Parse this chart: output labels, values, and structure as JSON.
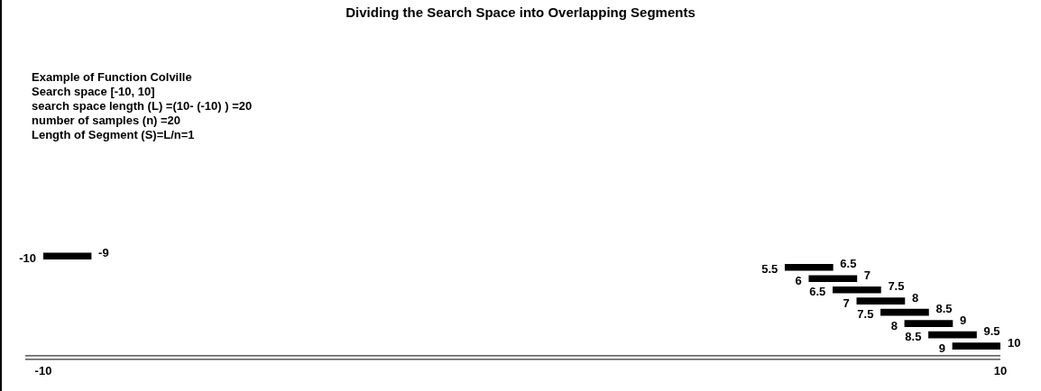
{
  "chart_data": {
    "type": "bar",
    "orientation": "horizontal",
    "title": "Dividing the Search Space into Overlapping Segments",
    "categories": [
      null,
      null,
      null,
      null,
      null,
      null,
      null,
      null,
      null
    ],
    "base": [
      -10,
      5.5,
      6,
      6.5,
      7,
      7.5,
      8,
      8.5,
      9
    ],
    "values": [
      1,
      1,
      1,
      1,
      1,
      1,
      1,
      1,
      1
    ],
    "color": "#000000",
    "value_labels": [
      "-9",
      "6.5",
      "7",
      "7.5",
      "8",
      "8.5",
      "9",
      "9.5",
      "10"
    ],
    "annotations": [
      "Example of  Function Colville",
      "Search space [-10, 10]",
      "search space length (L) =(10- (-10) ) =20",
      "number of samples (n) =20",
      "Length of Segment (S)=L/n=1",
      {
        "text": "-10",
        "x": -10
      },
      {
        "text": "5.5",
        "x": 5.5
      },
      {
        "text": "6",
        "x": 6
      },
      {
        "text": "6.5",
        "x": 6.5
      },
      {
        "text": "7",
        "x": 7
      },
      {
        "text": "7.5",
        "x": 7.5
      },
      {
        "text": "8",
        "x": 8
      },
      {
        "text": "8.5",
        "x": 8.5
      },
      {
        "text": "9",
        "x": 9
      }
    ],
    "xlim": [
      -10,
      10
    ],
    "xticks": [
      -10,
      10
    ]
  }
}
